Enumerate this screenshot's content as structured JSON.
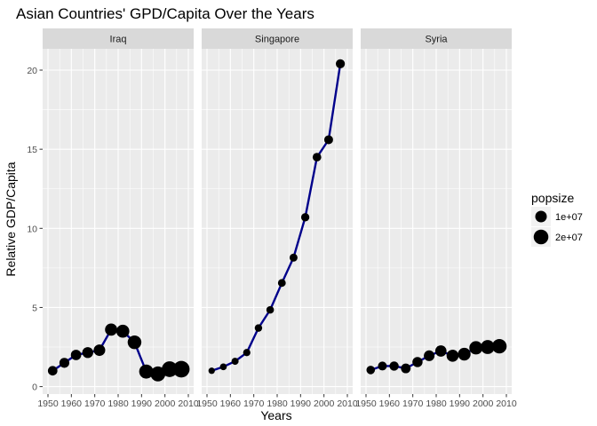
{
  "chart_data": {
    "type": "scatter",
    "title": "Asian Countries' GPD/Capita Over the Years",
    "xlabel": "Years",
    "ylabel": "Relative GDP/Capita",
    "xlim": [
      1950,
      2010
    ],
    "ylim": [
      0,
      21
    ],
    "x_ticks": [
      "1950",
      "1960",
      "1970",
      "1980",
      "1990",
      "2000",
      "2010"
    ],
    "y_ticks": [
      "0",
      "5",
      "10",
      "15",
      "20"
    ],
    "grid": true,
    "legend": {
      "title": "popsize",
      "placement": "right",
      "entries": [
        {
          "label": "1e+07",
          "value": 10000000
        },
        {
          "label": "2e+07",
          "value": 20000000
        }
      ]
    },
    "colors": {
      "line": "#00008b",
      "point": "#000000",
      "panel_bg": "#ebebeb",
      "strip_bg": "#d9d9d9",
      "grid": "#ffffff"
    },
    "facets": [
      {
        "name": "Iraq",
        "points": [
          {
            "year": 1952,
            "gdp": 1.0,
            "pop": 5400000
          },
          {
            "year": 1957,
            "gdp": 1.5,
            "pop": 6200000
          },
          {
            "year": 1962,
            "gdp": 2.0,
            "pop": 7200000
          },
          {
            "year": 1967,
            "gdp": 2.15,
            "pop": 8500000
          },
          {
            "year": 1972,
            "gdp": 2.3,
            "pop": 10000000
          },
          {
            "year": 1977,
            "gdp": 3.6,
            "pop": 11900000
          },
          {
            "year": 1982,
            "gdp": 3.5,
            "pop": 14200000
          },
          {
            "year": 1987,
            "gdp": 2.8,
            "pop": 16500000
          },
          {
            "year": 1992,
            "gdp": 0.95,
            "pop": 17900000
          },
          {
            "year": 1997,
            "gdp": 0.8,
            "pop": 20800000
          },
          {
            "year": 2002,
            "gdp": 1.1,
            "pop": 24000000
          },
          {
            "year": 2007,
            "gdp": 1.1,
            "pop": 27500000
          }
        ]
      },
      {
        "name": "Singapore",
        "points": [
          {
            "year": 1952,
            "gdp": 1.0,
            "pop": 1100000
          },
          {
            "year": 1957,
            "gdp": 1.25,
            "pop": 1400000
          },
          {
            "year": 1962,
            "gdp": 1.6,
            "pop": 1750000
          },
          {
            "year": 1967,
            "gdp": 2.15,
            "pop": 1980000
          },
          {
            "year": 1972,
            "gdp": 3.7,
            "pop": 2150000
          },
          {
            "year": 1977,
            "gdp": 4.85,
            "pop": 2330000
          },
          {
            "year": 1982,
            "gdp": 6.55,
            "pop": 2650000
          },
          {
            "year": 1987,
            "gdp": 8.15,
            "pop": 2800000
          },
          {
            "year": 1992,
            "gdp": 10.7,
            "pop": 3230000
          },
          {
            "year": 1997,
            "gdp": 14.5,
            "pop": 3800000
          },
          {
            "year": 2002,
            "gdp": 15.6,
            "pop": 4200000
          },
          {
            "year": 2007,
            "gdp": 20.4,
            "pop": 4550000
          }
        ]
      },
      {
        "name": "Syria",
        "points": [
          {
            "year": 1952,
            "gdp": 1.05,
            "pop": 3700000
          },
          {
            "year": 1957,
            "gdp": 1.3,
            "pop": 4200000
          },
          {
            "year": 1962,
            "gdp": 1.3,
            "pop": 4900000
          },
          {
            "year": 1967,
            "gdp": 1.15,
            "pop": 5700000
          },
          {
            "year": 1972,
            "gdp": 1.55,
            "pop": 6700000
          },
          {
            "year": 1977,
            "gdp": 1.95,
            "pop": 7900000
          },
          {
            "year": 1982,
            "gdp": 2.25,
            "pop": 9400000
          },
          {
            "year": 1987,
            "gdp": 1.95,
            "pop": 11300000
          },
          {
            "year": 1992,
            "gdp": 2.05,
            "pop": 13200000
          },
          {
            "year": 1997,
            "gdp": 2.45,
            "pop": 15100000
          },
          {
            "year": 2002,
            "gdp": 2.5,
            "pop": 17200000
          },
          {
            "year": 2007,
            "gdp": 2.55,
            "pop": 19300000
          }
        ]
      }
    ]
  }
}
